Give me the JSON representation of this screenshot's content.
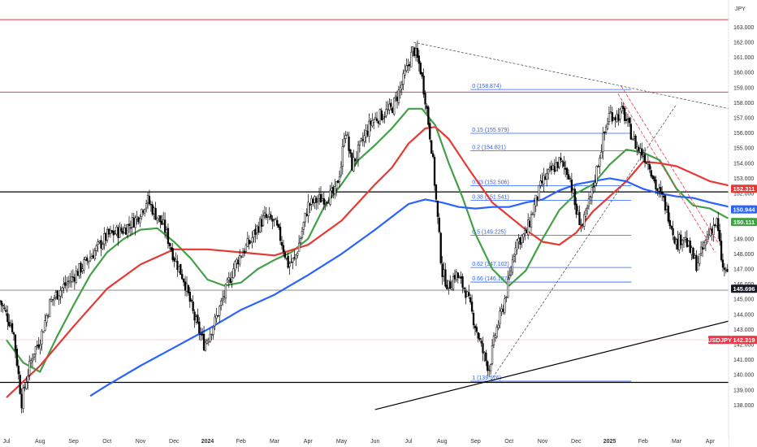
{
  "chart_data": {
    "type": "candlestick",
    "symbol": "USDJPY",
    "currency": "JPY",
    "y_axis": {
      "min": 137.5,
      "max": 163.9,
      "ticks": [
        138.0,
        139.0,
        140.0,
        141.0,
        142.0,
        143.0,
        144.0,
        145.0,
        146.0,
        147.0,
        148.0,
        149.0,
        150.0,
        151.0,
        152.0,
        153.0,
        154.0,
        155.0,
        156.0,
        157.0,
        158.0,
        159.0,
        160.0,
        161.0,
        162.0,
        163.0
      ],
      "tick_labels": [
        "138.000",
        "139.000",
        "140.000",
        "141.000",
        "142.000",
        "143.000",
        "144.000",
        "145.000",
        "146.000",
        "147.000",
        "148.000",
        "149.000",
        "150.000",
        "151.000",
        "152.000",
        "153.000",
        "154.000",
        "155.000",
        "156.000",
        "157.000",
        "158.000",
        "159.000",
        "160.000",
        "161.000",
        "162.000",
        "163.000"
      ]
    },
    "x_axis": {
      "labels": [
        {
          "text": "Jul",
          "month": 0,
          "bold": false
        },
        {
          "text": "Aug",
          "month": 1,
          "bold": false
        },
        {
          "text": "Sep",
          "month": 2,
          "bold": false
        },
        {
          "text": "Oct",
          "month": 3,
          "bold": false
        },
        {
          "text": "Nov",
          "month": 4,
          "bold": false
        },
        {
          "text": "Dec",
          "month": 5,
          "bold": false
        },
        {
          "text": "2024",
          "month": 6,
          "bold": true
        },
        {
          "text": "Feb",
          "month": 7,
          "bold": false
        },
        {
          "text": "Mar",
          "month": 8,
          "bold": false
        },
        {
          "text": "Apr",
          "month": 9,
          "bold": false
        },
        {
          "text": "May",
          "month": 10,
          "bold": false
        },
        {
          "text": "Jun",
          "month": 11,
          "bold": false
        },
        {
          "text": "Jul",
          "month": 12,
          "bold": false
        },
        {
          "text": "Aug",
          "month": 13,
          "bold": false
        },
        {
          "text": "Sep",
          "month": 14,
          "bold": false
        },
        {
          "text": "Oct",
          "month": 15,
          "bold": false
        },
        {
          "text": "Nov",
          "month": 16,
          "bold": false
        },
        {
          "text": "Dec",
          "month": 17,
          "bold": false
        },
        {
          "text": "2025",
          "month": 18,
          "bold": true
        },
        {
          "text": "Feb",
          "month": 19,
          "bold": false
        },
        {
          "text": "Mar",
          "month": 20,
          "bold": false
        },
        {
          "text": "Apr",
          "month": 21,
          "bold": false
        }
      ]
    },
    "price_path": [
      [
        -0.2,
        144.9
      ],
      [
        0.2,
        143.0
      ],
      [
        0.45,
        138.2
      ],
      [
        0.6,
        139.8
      ],
      [
        0.8,
        141.5
      ],
      [
        1.0,
        142.3
      ],
      [
        1.3,
        144.8
      ],
      [
        1.6,
        145.6
      ],
      [
        2.0,
        146.5
      ],
      [
        2.5,
        147.8
      ],
      [
        3.0,
        149.2
      ],
      [
        3.5,
        149.6
      ],
      [
        3.9,
        150.4
      ],
      [
        4.2,
        151.6
      ],
      [
        4.4,
        150.8
      ],
      [
        4.7,
        149.8
      ],
      [
        5.0,
        147.8
      ],
      [
        5.3,
        146.3
      ],
      [
        5.6,
        143.8
      ],
      [
        5.9,
        142.0
      ],
      [
        6.2,
        143.4
      ],
      [
        6.5,
        145.3
      ],
      [
        6.8,
        147.2
      ],
      [
        7.0,
        148.0
      ],
      [
        7.3,
        148.9
      ],
      [
        7.5,
        149.8
      ],
      [
        7.7,
        150.4
      ],
      [
        8.0,
        150.1
      ],
      [
        8.2,
        148.9
      ],
      [
        8.4,
        147.3
      ],
      [
        8.6,
        147.6
      ],
      [
        8.8,
        149.3
      ],
      [
        9.0,
        151.2
      ],
      [
        9.3,
        151.6
      ],
      [
        9.6,
        151.8
      ],
      [
        9.8,
        152.0
      ],
      [
        10.0,
        154.0
      ],
      [
        10.1,
        156.5
      ],
      [
        10.3,
        153.8
      ],
      [
        10.6,
        155.3
      ],
      [
        10.9,
        156.8
      ],
      [
        11.2,
        157.2
      ],
      [
        11.5,
        157.6
      ],
      [
        11.8,
        159.2
      ],
      [
        12.0,
        160.6
      ],
      [
        12.15,
        161.6
      ],
      [
        12.35,
        160.3
      ],
      [
        12.5,
        158.3
      ],
      [
        12.7,
        154.8
      ],
      [
        12.85,
        150.8
      ],
      [
        13.0,
        146.8
      ],
      [
        13.2,
        145.8
      ],
      [
        13.4,
        146.7
      ],
      [
        13.7,
        145.6
      ],
      [
        14.0,
        143.2
      ],
      [
        14.2,
        141.6
      ],
      [
        14.4,
        140.4
      ],
      [
        14.6,
        142.8
      ],
      [
        14.8,
        144.3
      ],
      [
        15.0,
        146.3
      ],
      [
        15.2,
        148.8
      ],
      [
        15.5,
        149.3
      ],
      [
        15.8,
        151.5
      ],
      [
        16.0,
        152.8
      ],
      [
        16.3,
        153.6
      ],
      [
        16.5,
        154.1
      ],
      [
        16.8,
        153.3
      ],
      [
        17.0,
        150.8
      ],
      [
        17.2,
        149.8
      ],
      [
        17.5,
        152.3
      ],
      [
        17.8,
        155.6
      ],
      [
        18.0,
        157.3
      ],
      [
        18.2,
        157.1
      ],
      [
        18.4,
        157.4
      ],
      [
        18.6,
        156.2
      ],
      [
        18.8,
        155.1
      ],
      [
        19.0,
        154.6
      ],
      [
        19.2,
        153.9
      ],
      [
        19.4,
        152.3
      ],
      [
        19.6,
        151.6
      ],
      [
        19.8,
        150.3
      ],
      [
        20.0,
        148.6
      ],
      [
        20.2,
        149.3
      ],
      [
        20.4,
        148.2
      ],
      [
        20.6,
        147.3
      ],
      [
        20.8,
        148.4
      ],
      [
        21.0,
        149.6
      ],
      [
        21.2,
        150.1
      ],
      [
        21.3,
        148.3
      ],
      [
        21.4,
        146.7
      ],
      [
        21.5,
        147.1
      ],
      [
        21.55,
        145.5
      ],
      [
        21.6,
        142.3
      ]
    ],
    "close_price": 142.319,
    "horizontal_levels": [
      {
        "price": 163.5,
        "color": "#f23645",
        "width": 1
      },
      {
        "price": 158.7,
        "color": "#f23645",
        "width": 1
      },
      {
        "price": 152.1,
        "color": "#000000",
        "width": 1.2
      },
      {
        "price": 145.6,
        "color": "#7b7b7b",
        "width": 0.8
      },
      {
        "price": 139.5,
        "color": "#000000",
        "width": 1.2
      }
    ],
    "fibonacci": {
      "x_start_month": 13.8,
      "x_end_month": 18.65,
      "color": "#2962ff",
      "levels": [
        {
          "price": 158.874,
          "label": "0 (158.874)"
        },
        {
          "price": 155.979,
          "label": "0.15 (155.979)"
        },
        {
          "price": 154.821,
          "label": "0.2 (154.821)"
        },
        {
          "price": 152.506,
          "label": "0.33 (152.506)"
        },
        {
          "price": 151.541,
          "label": "0.38 (151.541)"
        },
        {
          "price": 149.225,
          "label": "0.5 (149.225)"
        },
        {
          "price": 147.102,
          "label": "0.62 (147.102)"
        },
        {
          "price": 146.137,
          "label": "0.66 (146.137)"
        },
        {
          "price": 139.576,
          "label": "1 (139.576)"
        }
      ]
    },
    "trend_lines": [
      {
        "from": [
          11.0,
          137.7
        ],
        "to": [
          22.0,
          143.8
        ],
        "color": "#000000",
        "width": 1.2,
        "dash": ""
      },
      {
        "from": [
          12.15,
          162.0
        ],
        "to": [
          22.0,
          157.4
        ],
        "color": "#555555",
        "width": 0.8,
        "dash": "3,2"
      },
      {
        "from": [
          14.45,
          139.6
        ],
        "to": [
          20.0,
          157.9
        ],
        "color": "#555555",
        "width": 0.8,
        "dash": "3,2"
      },
      {
        "from": [
          18.35,
          159.1
        ],
        "to": [
          21.25,
          148.7
        ],
        "color": "#f23645",
        "width": 0.8,
        "dash": "4,2"
      },
      {
        "from": [
          18.25,
          158.6
        ],
        "to": [
          21.15,
          148.1
        ],
        "color": "#f23645",
        "width": 0.8,
        "dash": "4,2"
      }
    ],
    "moving_averages": [
      {
        "name": "MA50",
        "color": "#43a047",
        "value": 150.111,
        "points": [
          [
            0,
            142.3
          ],
          [
            0.5,
            140.8
          ],
          [
            1,
            140.2
          ],
          [
            1.5,
            142.5
          ],
          [
            2,
            144.6
          ],
          [
            2.5,
            146.6
          ],
          [
            3,
            148.1
          ],
          [
            3.5,
            149.0
          ],
          [
            4,
            149.6
          ],
          [
            4.5,
            149.7
          ],
          [
            5,
            148.8
          ],
          [
            5.5,
            147.7
          ],
          [
            6,
            146.3
          ],
          [
            6.5,
            145.9
          ],
          [
            7,
            146.1
          ],
          [
            7.5,
            147.0
          ],
          [
            8,
            147.6
          ],
          [
            8.5,
            148.1
          ],
          [
            9,
            149.0
          ],
          [
            9.5,
            151.2
          ],
          [
            10,
            152.6
          ],
          [
            10.5,
            154.2
          ],
          [
            11,
            155.2
          ],
          [
            11.5,
            156.3
          ],
          [
            12,
            157.6
          ],
          [
            12.4,
            157.6
          ],
          [
            12.8,
            156.5
          ],
          [
            13.2,
            154.0
          ],
          [
            13.6,
            151.8
          ],
          [
            14,
            149.3
          ],
          [
            14.5,
            147.0
          ],
          [
            15,
            145.9
          ],
          [
            15.5,
            146.9
          ],
          [
            16,
            149.0
          ],
          [
            16.5,
            150.9
          ],
          [
            17,
            152.0
          ],
          [
            17.5,
            152.6
          ],
          [
            18,
            153.9
          ],
          [
            18.5,
            154.9
          ],
          [
            19,
            154.7
          ],
          [
            19.5,
            154.2
          ],
          [
            20,
            152.3
          ],
          [
            20.5,
            151.2
          ],
          [
            21,
            151.0
          ],
          [
            21.5,
            150.4
          ],
          [
            22,
            150.1
          ]
        ]
      },
      {
        "name": "MA100",
        "color": "#e53935",
        "value": 152.311,
        "points": [
          [
            0,
            138.5
          ],
          [
            1,
            140.6
          ],
          [
            2,
            143.2
          ],
          [
            3,
            145.7
          ],
          [
            4,
            147.3
          ],
          [
            5,
            148.3
          ],
          [
            6,
            148.3
          ],
          [
            7,
            148.1
          ],
          [
            8,
            147.9
          ],
          [
            9,
            148.6
          ],
          [
            10,
            150.2
          ],
          [
            10.5,
            151.4
          ],
          [
            11,
            152.6
          ],
          [
            11.5,
            153.7
          ],
          [
            12,
            155.3
          ],
          [
            12.5,
            156.3
          ],
          [
            12.8,
            156.4
          ],
          [
            13.2,
            155.6
          ],
          [
            13.8,
            153.6
          ],
          [
            14.5,
            151.4
          ],
          [
            15,
            150.5
          ],
          [
            15.5,
            149.6
          ],
          [
            16,
            148.8
          ],
          [
            16.5,
            148.6
          ],
          [
            17,
            149.4
          ],
          [
            17.5,
            150.8
          ],
          [
            18,
            151.8
          ],
          [
            18.5,
            152.8
          ],
          [
            19,
            154.1
          ],
          [
            19.5,
            154.0
          ],
          [
            20,
            153.8
          ],
          [
            20.5,
            153.3
          ],
          [
            21,
            152.8
          ],
          [
            22,
            152.3
          ]
        ]
      },
      {
        "name": "MA200",
        "color": "#2962ff",
        "value": 150.944,
        "points": [
          [
            2.5,
            138.6
          ],
          [
            3,
            139.3
          ],
          [
            4,
            140.6
          ],
          [
            5,
            141.8
          ],
          [
            6,
            143.0
          ],
          [
            7,
            144.3
          ],
          [
            8,
            145.3
          ],
          [
            9,
            146.6
          ],
          [
            10,
            148.0
          ],
          [
            11,
            149.6
          ],
          [
            12,
            151.3
          ],
          [
            12.5,
            151.6
          ],
          [
            13,
            151.4
          ],
          [
            13.5,
            151.1
          ],
          [
            14,
            151.0
          ],
          [
            14.5,
            151.1
          ],
          [
            15,
            151.1
          ],
          [
            15.5,
            151.4
          ],
          [
            16,
            151.6
          ],
          [
            16.5,
            152.2
          ],
          [
            17,
            152.6
          ],
          [
            17.5,
            152.8
          ],
          [
            18,
            153.0
          ],
          [
            18.5,
            152.8
          ],
          [
            19,
            152.3
          ],
          [
            19.5,
            152.0
          ],
          [
            20,
            151.8
          ],
          [
            20.5,
            151.7
          ],
          [
            21,
            151.4
          ],
          [
            22,
            150.9
          ]
        ]
      }
    ],
    "badges": [
      {
        "label": "152.311",
        "price": 152.311,
        "color": "#e53935"
      },
      {
        "label": "150.944",
        "price": 150.944,
        "color": "#2962ff"
      },
      {
        "label": "150.111",
        "price": 150.111,
        "color": "#43a047"
      },
      {
        "label": "145.696",
        "price": 145.696,
        "color": "#131722"
      },
      {
        "label": "142.319",
        "price": 142.319,
        "color": "#f23645"
      },
      {
        "label": "USDJPY",
        "price": 142.319,
        "color": "#f23645"
      }
    ]
  }
}
